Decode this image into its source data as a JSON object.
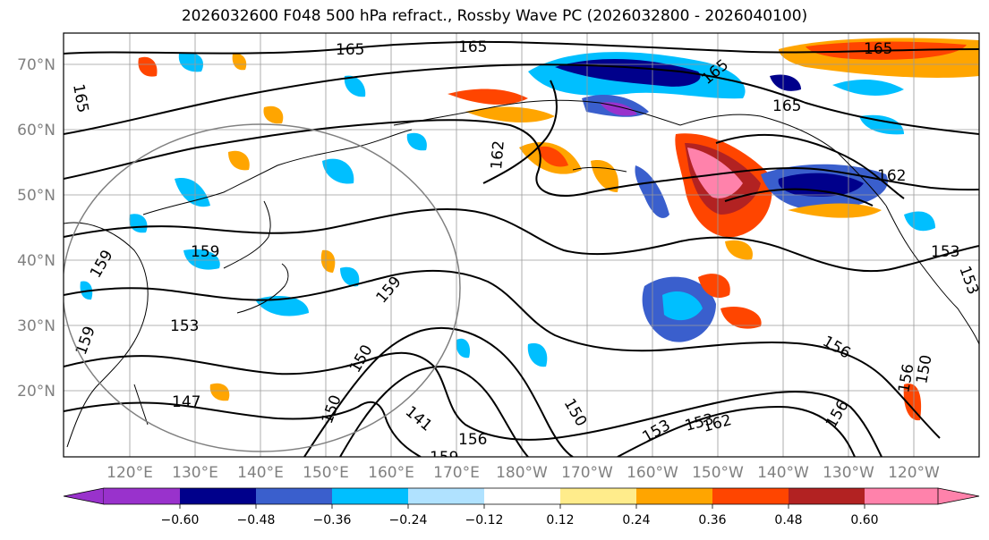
{
  "title": "2026032600 F048 500 hPa refract., Rossby Wave PC (2026032800 - 2026040100)",
  "lat_labels": [
    "70°N",
    "60°N",
    "50°N",
    "40°N",
    "30°N",
    "20°N"
  ],
  "lon_labels": [
    "120°E",
    "130°E",
    "140°E",
    "150°E",
    "160°E",
    "170°E",
    "180°W",
    "170°W",
    "160°W",
    "150°W",
    "140°W",
    "130°W",
    "120°W"
  ],
  "contour_labels": [
    "165",
    "165",
    "165",
    "165",
    "165",
    "165",
    "162",
    "162",
    "159",
    "159",
    "159",
    "159",
    "153",
    "150",
    "150",
    "150",
    "147",
    "141",
    "156",
    "156",
    "156",
    "153",
    "153",
    "162",
    "159",
    "156",
    "150",
    "153",
    "153"
  ],
  "colorbar": {
    "tick_labels": [
      "−0.60",
      "−0.48",
      "−0.36",
      "−0.24",
      "−0.12",
      "0.12",
      "0.24",
      "0.36",
      "0.48",
      "0.60"
    ],
    "colors": [
      "#9932cc",
      "#00008b",
      "#3a5fcd",
      "#00bfff",
      "#b0e2ff",
      "#ffffff",
      "#ffec8b",
      "#ffa500",
      "#ff4500",
      "#b22222",
      "#ff82ab",
      "#ff82ab"
    ]
  },
  "palette": {
    "purple": "#9932cc",
    "navy": "#00008b",
    "blue": "#3a5fcd",
    "sky": "#00bfff",
    "light": "#b0e2ff",
    "yellow": "#ffec8b",
    "orange": "#ffa500",
    "red": "#ff4500",
    "dark_red": "#b22222",
    "pink": "#ff82ab"
  }
}
